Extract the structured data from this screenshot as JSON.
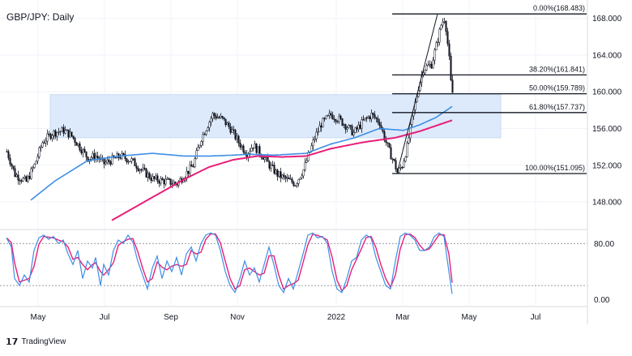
{
  "chart_data": {
    "type": "candlestick",
    "title": "GBP/JPY: Daily",
    "price_axis": {
      "ticks": [
        "168.000",
        "164.000",
        "160.000",
        "156.000",
        "152.000",
        "148.000"
      ],
      "tick_values": [
        168,
        164,
        160,
        156,
        152,
        148
      ],
      "ylim": [
        145,
        170
      ]
    },
    "oscillator_axis": {
      "ticks": [
        "80.00",
        "0.00"
      ],
      "tick_values": [
        80,
        0
      ],
      "ylim": [
        -10,
        100
      ],
      "upper_level": 80,
      "lower_level": 20
    },
    "time_axis": {
      "labels": [
        "May",
        "Jul",
        "Sep",
        "Nov",
        "2022",
        "Mar",
        "May",
        "Jul"
      ],
      "label_positions": [
        1,
        42,
        83,
        124,
        185,
        226,
        267,
        308
      ],
      "bar_count": 360
    },
    "fibonacci": [
      {
        "label": "0.00%(168.483)",
        "price": 168.483
      },
      {
        "label": "38.20%(161.841)",
        "price": 161.841
      },
      {
        "label": "50.00%(159.789)",
        "price": 159.789
      },
      {
        "label": "61.80%(157.737)",
        "price": 157.737
      },
      {
        "label": "100.00%(151.095)",
        "price": 151.095
      }
    ],
    "zone": {
      "price_low": 155.0,
      "price_high": 159.7,
      "bar_start": 27,
      "bar_end": 305
    },
    "price_anchors": [
      [
        0,
        153.5
      ],
      [
        5,
        151.0
      ],
      [
        12,
        150.2
      ],
      [
        17,
        152.0
      ],
      [
        22,
        154.5
      ],
      [
        28,
        155.5
      ],
      [
        35,
        155.8
      ],
      [
        40,
        155.2
      ],
      [
        45,
        154.0
      ],
      [
        50,
        152.8
      ],
      [
        55,
        153.0
      ],
      [
        60,
        152.2
      ],
      [
        70,
        153.0
      ],
      [
        77,
        152.5
      ],
      [
        83,
        151.5
      ],
      [
        90,
        150.5
      ],
      [
        105,
        150.0
      ],
      [
        115,
        152.0
      ],
      [
        120,
        155.0
      ],
      [
        127,
        157.5
      ],
      [
        133,
        157.0
      ],
      [
        138,
        156.0
      ],
      [
        143,
        154.5
      ],
      [
        148,
        153.3
      ],
      [
        152,
        154.2
      ],
      [
        158,
        153.0
      ],
      [
        162,
        152.0
      ],
      [
        167,
        151.0
      ],
      [
        172,
        150.5
      ],
      [
        178,
        150.0
      ],
      [
        183,
        151.5
      ],
      [
        187,
        153.5
      ],
      [
        190,
        155.0
      ],
      [
        194,
        156.5
      ],
      [
        200,
        157.5
      ],
      [
        205,
        157.0
      ],
      [
        210,
        156.2
      ],
      [
        214,
        155.5
      ],
      [
        220,
        156.8
      ],
      [
        225,
        157.5
      ],
      [
        230,
        156.7
      ],
      [
        233,
        155.0
      ],
      [
        236,
        153.5
      ],
      [
        239,
        152.3
      ],
      [
        241,
        151.2
      ],
      [
        244,
        152.0
      ],
      [
        247,
        154.0
      ],
      [
        250,
        157.0
      ],
      [
        254,
        160.5
      ],
      [
        257,
        162.5
      ],
      [
        262,
        163.0
      ],
      [
        265,
        165.0
      ],
      [
        268,
        167.3
      ],
      [
        270,
        168.0
      ],
      [
        271,
        167.0
      ],
      [
        273,
        163.5
      ],
      [
        274,
        161.0
      ],
      [
        275,
        159.9
      ]
    ],
    "ma_fast_anchors": [
      [
        15,
        148.2
      ],
      [
        30,
        150.3
      ],
      [
        50,
        152.5
      ],
      [
        70,
        153.0
      ],
      [
        90,
        153.3
      ],
      [
        110,
        153.0
      ],
      [
        125,
        153.0
      ],
      [
        140,
        153.1
      ],
      [
        150,
        153.2
      ],
      [
        165,
        153.1
      ],
      [
        185,
        153.3
      ],
      [
        200,
        154.3
      ],
      [
        215,
        155.0
      ],
      [
        230,
        156.0
      ],
      [
        245,
        155.8
      ],
      [
        255,
        156.4
      ],
      [
        265,
        157.2
      ],
      [
        275,
        158.4
      ]
    ],
    "ma_slow_anchors": [
      [
        65,
        146.0
      ],
      [
        80,
        147.5
      ],
      [
        95,
        149.0
      ],
      [
        110,
        150.5
      ],
      [
        125,
        151.8
      ],
      [
        140,
        152.6
      ],
      [
        155,
        153.0
      ],
      [
        170,
        152.9
      ],
      [
        185,
        153.0
      ],
      [
        200,
        153.8
      ],
      [
        220,
        154.5
      ],
      [
        240,
        155.0
      ],
      [
        255,
        155.7
      ],
      [
        275,
        156.9
      ]
    ],
    "stoch_anchors": [
      [
        0,
        88
      ],
      [
        3,
        75
      ],
      [
        5,
        30
      ],
      [
        8,
        20
      ],
      [
        11,
        35
      ],
      [
        14,
        25
      ],
      [
        17,
        70
      ],
      [
        20,
        88
      ],
      [
        23,
        92
      ],
      [
        26,
        86
      ],
      [
        29,
        90
      ],
      [
        32,
        80
      ],
      [
        35,
        85
      ],
      [
        38,
        65
      ],
      [
        41,
        50
      ],
      [
        44,
        70
      ],
      [
        47,
        30
      ],
      [
        50,
        55
      ],
      [
        53,
        45
      ],
      [
        55,
        60
      ],
      [
        58,
        20
      ],
      [
        60,
        50
      ],
      [
        63,
        35
      ],
      [
        66,
        70
      ],
      [
        69,
        85
      ],
      [
        72,
        80
      ],
      [
        75,
        92
      ],
      [
        78,
        82
      ],
      [
        81,
        55
      ],
      [
        84,
        35
      ],
      [
        87,
        15
      ],
      [
        90,
        45
      ],
      [
        93,
        62
      ],
      [
        96,
        30
      ],
      [
        99,
        55
      ],
      [
        102,
        40
      ],
      [
        105,
        60
      ],
      [
        108,
        35
      ],
      [
        111,
        65
      ],
      [
        114,
        75
      ],
      [
        117,
        55
      ],
      [
        120,
        80
      ],
      [
        123,
        92
      ],
      [
        126,
        95
      ],
      [
        129,
        92
      ],
      [
        132,
        70
      ],
      [
        135,
        40
      ],
      [
        138,
        20
      ],
      [
        141,
        10
      ],
      [
        144,
        30
      ],
      [
        147,
        55
      ],
      [
        150,
        35
      ],
      [
        153,
        45
      ],
      [
        156,
        25
      ],
      [
        159,
        50
      ],
      [
        162,
        75
      ],
      [
        165,
        50
      ],
      [
        168,
        20
      ],
      [
        171,
        10
      ],
      [
        174,
        30
      ],
      [
        177,
        15
      ],
      [
        180,
        40
      ],
      [
        183,
        65
      ],
      [
        186,
        92
      ],
      [
        189,
        95
      ],
      [
        192,
        88
      ],
      [
        195,
        90
      ],
      [
        198,
        80
      ],
      [
        201,
        40
      ],
      [
        204,
        15
      ],
      [
        207,
        10
      ],
      [
        210,
        30
      ],
      [
        213,
        55
      ],
      [
        216,
        60
      ],
      [
        219,
        85
      ],
      [
        222,
        92
      ],
      [
        225,
        88
      ],
      [
        228,
        60
      ],
      [
        231,
        40
      ],
      [
        234,
        20
      ],
      [
        237,
        15
      ],
      [
        240,
        55
      ],
      [
        243,
        90
      ],
      [
        246,
        95
      ],
      [
        249,
        92
      ],
      [
        252,
        85
      ],
      [
        255,
        70
      ],
      [
        258,
        70
      ],
      [
        261,
        75
      ],
      [
        264,
        90
      ],
      [
        267,
        95
      ],
      [
        270,
        90
      ],
      [
        273,
        40
      ],
      [
        275,
        8
      ]
    ]
  }
}
